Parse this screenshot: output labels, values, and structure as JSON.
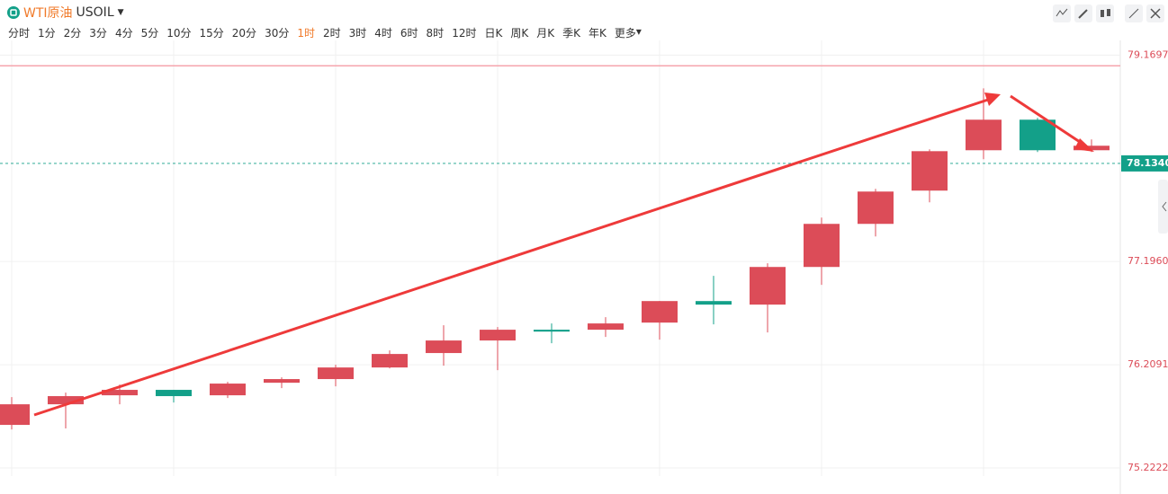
{
  "toolbar": {
    "name": "WTI原油",
    "symbol": "USOIL",
    "intervals": [
      "分时",
      "1分",
      "2分",
      "3分",
      "4分",
      "5分",
      "10分",
      "15分",
      "20分",
      "30分",
      "1时",
      "2时",
      "3时",
      "4时",
      "6时",
      "8时",
      "12时",
      "日K",
      "周K",
      "月K",
      "季K",
      "年K",
      "更多"
    ],
    "active": 10
  },
  "chart_data": {
    "type": "candlestick",
    "up_color": "#dc4c58",
    "down_color": "#13a089",
    "open": [
      75.634,
      75.831,
      75.917,
      75.969,
      75.917,
      76.037,
      76.072,
      76.183,
      76.321,
      76.441,
      76.544,
      76.544,
      76.612,
      76.818,
      76.784,
      77.144,
      77.556,
      77.874,
      78.26,
      78.552,
      78.26
    ],
    "high": [
      75.9,
      75.943,
      76.02,
      75.969,
      76.046,
      76.089,
      76.209,
      76.346,
      76.587,
      76.57,
      76.604,
      76.664,
      76.818,
      77.059,
      77.179,
      77.616,
      77.891,
      78.269,
      78.852,
      78.569,
      78.363
    ],
    "low": [
      75.591,
      75.6,
      75.831,
      75.848,
      75.891,
      75.986,
      76.003,
      76.174,
      76.2,
      76.157,
      76.415,
      76.475,
      76.449,
      76.595,
      76.518,
      76.973,
      77.436,
      77.762,
      78.174,
      78.243,
      78.243
    ],
    "close": [
      75.831,
      75.909,
      75.969,
      75.909,
      76.029,
      76.072,
      76.183,
      76.312,
      76.441,
      76.544,
      76.526,
      76.604,
      76.818,
      76.784,
      77.144,
      77.556,
      77.865,
      78.251,
      78.552,
      78.26,
      78.303
    ],
    "ylim": [
      75.145,
      79.31
    ],
    "yticks": [
      75.2222,
      {
        "value": 76.2091,
        "label": "76.2091"
      },
      {
        "value": 77.196,
        "label": "77.1960"
      },
      79.1697
    ],
    "last_price": {
      "value": 78.134,
      "label": "78.1340"
    },
    "reference_line": 79.067,
    "grid": true
  }
}
